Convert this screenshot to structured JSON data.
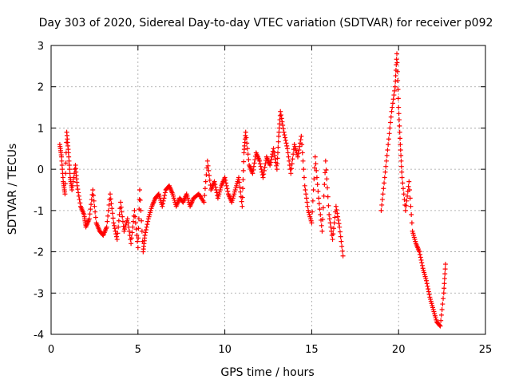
{
  "chart_data": {
    "type": "scatter",
    "title": "Day 303 of 2020, Sidereal Day-to-day VTEC variation (SDTVAR) for receiver p092",
    "xlabel": "GPS time / hours",
    "ylabel": "SDTVAR / TECUs",
    "xlim": [
      0,
      25
    ],
    "ylim": [
      -4,
      3
    ],
    "xticks": [
      0,
      5,
      10,
      15,
      20,
      25
    ],
    "yticks": [
      -4,
      -3,
      -2,
      -1,
      0,
      1,
      2,
      3
    ],
    "xtick_labels": [
      "0",
      "5",
      "10",
      "15",
      "20",
      "25"
    ],
    "ytick_labels": [
      "-4",
      "-3",
      "-2",
      "-1",
      "0",
      "1",
      "2",
      "3"
    ],
    "grid": true,
    "marker": "+",
    "series": [
      {
        "name": "SDTVAR p092",
        "color": "#ff0000",
        "trace": [
          [
            0.5,
            0.6
          ],
          [
            0.6,
            0.3
          ],
          [
            0.7,
            -0.3
          ],
          [
            0.8,
            -0.6
          ],
          [
            0.9,
            0.9
          ],
          [
            1.0,
            0.4
          ],
          [
            1.1,
            -0.2
          ],
          [
            1.2,
            -0.5
          ],
          [
            1.4,
            0.1
          ],
          [
            1.5,
            -0.4
          ],
          [
            1.7,
            -0.9
          ],
          [
            1.9,
            -1.1
          ],
          [
            2.0,
            -1.4
          ],
          [
            2.2,
            -1.2
          ],
          [
            2.4,
            -0.5
          ],
          [
            2.6,
            -1.3
          ],
          [
            2.8,
            -1.5
          ],
          [
            3.0,
            -1.6
          ],
          [
            3.2,
            -1.4
          ],
          [
            3.4,
            -0.6
          ],
          [
            3.6,
            -1.3
          ],
          [
            3.8,
            -1.7
          ],
          [
            4.0,
            -0.8
          ],
          [
            4.2,
            -1.5
          ],
          [
            4.4,
            -1.2
          ],
          [
            4.6,
            -1.8
          ],
          [
            4.8,
            -1.0
          ],
          [
            5.0,
            -1.9
          ],
          [
            5.1,
            -0.5
          ],
          [
            5.3,
            -2.0
          ],
          [
            5.4,
            -1.6
          ],
          [
            5.6,
            -1.2
          ],
          [
            5.8,
            -0.9
          ],
          [
            6.0,
            -0.7
          ],
          [
            6.2,
            -0.6
          ],
          [
            6.4,
            -0.9
          ],
          [
            6.6,
            -0.5
          ],
          [
            6.8,
            -0.4
          ],
          [
            7.0,
            -0.6
          ],
          [
            7.2,
            -0.9
          ],
          [
            7.4,
            -0.7
          ],
          [
            7.6,
            -0.8
          ],
          [
            7.8,
            -0.6
          ],
          [
            8.0,
            -0.9
          ],
          [
            8.2,
            -0.7
          ],
          [
            8.5,
            -0.6
          ],
          [
            8.8,
            -0.8
          ],
          [
            9.0,
            0.2
          ],
          [
            9.2,
            -0.5
          ],
          [
            9.4,
            -0.3
          ],
          [
            9.6,
            -0.7
          ],
          [
            9.8,
            -0.4
          ],
          [
            10.0,
            -0.2
          ],
          [
            10.2,
            -0.6
          ],
          [
            10.4,
            -0.8
          ],
          [
            10.6,
            -0.5
          ],
          [
            10.8,
            -0.2
          ],
          [
            11.0,
            -0.9
          ],
          [
            11.1,
            0.4
          ],
          [
            11.2,
            0.9
          ],
          [
            11.4,
            0.1
          ],
          [
            11.6,
            -0.1
          ],
          [
            11.8,
            0.4
          ],
          [
            12.0,
            0.2
          ],
          [
            12.2,
            -0.2
          ],
          [
            12.4,
            0.3
          ],
          [
            12.6,
            0.1
          ],
          [
            12.8,
            0.5
          ],
          [
            13.0,
            0.0
          ],
          [
            13.1,
            0.8
          ],
          [
            13.2,
            1.4
          ],
          [
            13.4,
            0.9
          ],
          [
            13.6,
            0.5
          ],
          [
            13.8,
            -0.1
          ],
          [
            14.0,
            0.6
          ],
          [
            14.2,
            0.3
          ],
          [
            14.4,
            0.8
          ],
          [
            14.6,
            -0.4
          ],
          [
            14.8,
            -1.0
          ],
          [
            15.0,
            -1.3
          ],
          [
            15.2,
            0.3
          ],
          [
            15.4,
            -0.7
          ],
          [
            15.6,
            -1.5
          ],
          [
            15.8,
            0.2
          ],
          [
            16.0,
            -1.1
          ],
          [
            16.2,
            -1.7
          ],
          [
            16.4,
            -0.9
          ],
          [
            16.6,
            -1.4
          ],
          [
            16.8,
            -2.1
          ],
          [
            19.0,
            -1.0
          ],
          [
            19.2,
            -0.2
          ],
          [
            19.4,
            0.6
          ],
          [
            19.6,
            1.4
          ],
          [
            19.8,
            2.0
          ],
          [
            19.9,
            2.8
          ],
          [
            20.0,
            1.5
          ],
          [
            20.1,
            0.6
          ],
          [
            20.2,
            -0.2
          ],
          [
            20.4,
            -1.0
          ],
          [
            20.6,
            -0.3
          ],
          [
            20.8,
            -1.5
          ],
          [
            21.0,
            -1.8
          ],
          [
            21.2,
            -2.0
          ],
          [
            21.4,
            -2.4
          ],
          [
            21.6,
            -2.7
          ],
          [
            21.8,
            -3.1
          ],
          [
            22.0,
            -3.4
          ],
          [
            22.2,
            -3.7
          ],
          [
            22.4,
            -3.8
          ],
          [
            22.6,
            -3.0
          ],
          [
            22.7,
            -2.3
          ]
        ]
      }
    ]
  }
}
